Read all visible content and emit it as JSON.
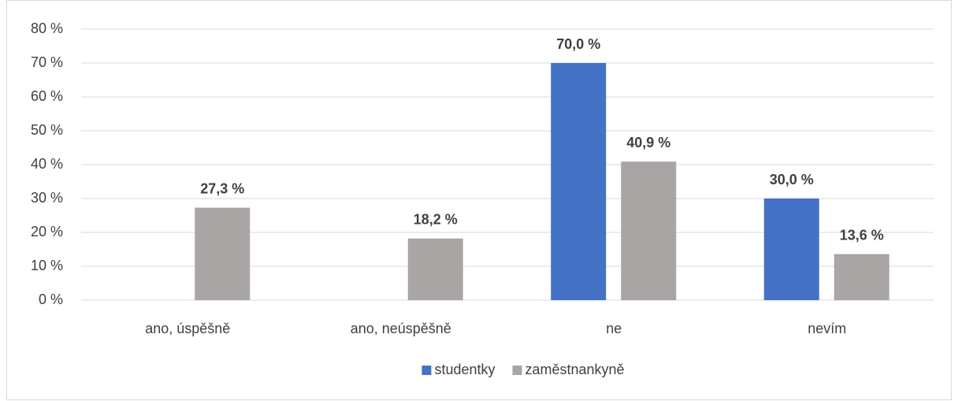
{
  "chart_data": {
    "type": "bar",
    "categories": [
      "ano, úspěšně",
      "ano, neúspěšně",
      "ne",
      "nevím"
    ],
    "series": [
      {
        "name": "studentky",
        "color": "#4472c4",
        "values": [
          null,
          null,
          70.0,
          30.0
        ],
        "value_labels": [
          null,
          null,
          "70,0 %",
          "30,0 %"
        ]
      },
      {
        "name": "zaměstnankyně",
        "color": "#a9a5a4",
        "values": [
          27.3,
          18.2,
          40.9,
          13.6
        ],
        "value_labels": [
          "27,3 %",
          "18,2 %",
          "40,9 %",
          "13,6 %"
        ]
      }
    ],
    "ylim": [
      0,
      80
    ],
    "yticks": [
      {
        "value": 0,
        "label": "0 %"
      },
      {
        "value": 10,
        "label": "10 %"
      },
      {
        "value": 20,
        "label": "20 %"
      },
      {
        "value": 30,
        "label": "30 %"
      },
      {
        "value": 40,
        "label": "40 %"
      },
      {
        "value": 50,
        "label": "50 %"
      },
      {
        "value": 60,
        "label": "60 %"
      },
      {
        "value": 70,
        "label": "70 %"
      },
      {
        "value": 80,
        "label": "80 %"
      }
    ],
    "grid": true,
    "legend": "bottom"
  }
}
